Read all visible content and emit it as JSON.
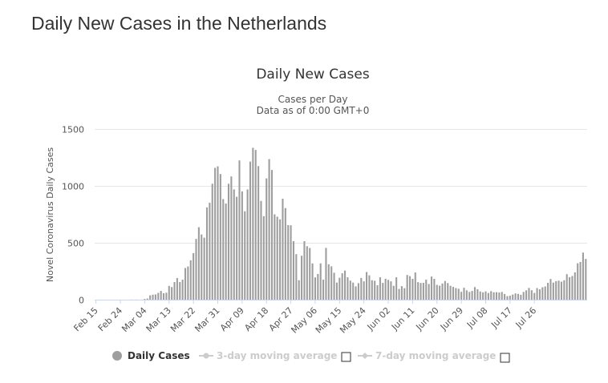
{
  "page": {
    "title": "Daily New Cases in the Netherlands"
  },
  "colors": {
    "bar": "#9e9e9e",
    "grid": "#e6e6e6",
    "axis": "#ccd6eb",
    "legend_active": "#333333",
    "legend_inactive": "#cccccc"
  },
  "legend": {
    "daily": "Daily Cases",
    "ma3": "3-day moving average",
    "ma7": "7-day moving average"
  },
  "chart_data": {
    "type": "bar",
    "title": "Daily New Cases",
    "subtitle_line1": "Cases per Day",
    "subtitle_line2": "Data as of 0:00 GMT+0",
    "ylabel": "Novel Coronavirus Daily Cases",
    "xlabel": "",
    "ylim": [
      0,
      1500
    ],
    "y_ticks": [
      0,
      500,
      1000,
      1500
    ],
    "start_date": "Feb 15",
    "x_tick_labels": [
      "Feb 15",
      "Feb 24",
      "Mar 04",
      "Mar 13",
      "Mar 22",
      "Mar 31",
      "Apr 09",
      "Apr 18",
      "Apr 27",
      "May 06",
      "May 15",
      "May 24",
      "Jun 02",
      "Jun 11",
      "Jun 20",
      "Jun 29",
      "Jul 08",
      "Jul 17",
      "Jul 26"
    ],
    "series": [
      {
        "name": "Daily Cases",
        "values": [
          0,
          0,
          0,
          0,
          0,
          0,
          0,
          0,
          0,
          0,
          0,
          0,
          0,
          1,
          0,
          1,
          0,
          0,
          6,
          10,
          38,
          44,
          46,
          60,
          77,
          56,
          61,
          121,
          111,
          155,
          190,
          155,
          176,
          278,
          292,
          346,
          409,
          534,
          637,
          573,
          545,
          811,
          852,
          1019,
          1159,
          1172,
          1104,
          884,
          845,
          1019,
          1083,
          969,
          904,
          1224,
          952,
          777,
          969,
          1213,
          1335,
          1316,
          1174,
          868,
          734,
          1066,
          1235,
          1140,
          750,
          729,
          706,
          887,
          805,
          655,
          654,
          514,
          400,
          171,
          386,
          514,
          470,
          454,
          319,
          196,
          226,
          319,
          176,
          455,
          311,
          293,
          237,
          150,
          193,
          232,
          256,
          197,
          167,
          150,
          117,
          145,
          191,
          161,
          243,
          214,
          171,
          166,
          127,
          197,
          148,
          184,
          174,
          161,
          122,
          197,
          94,
          119,
          101,
          217,
          207,
          183,
          239,
          154,
          147,
          148,
          176,
          138,
          203,
          183,
          130,
          123,
          142,
          164,
          146,
          122,
          112,
          102,
          96,
          69,
          105,
          82,
          68,
          77,
          111,
          92,
          72,
          65,
          73,
          59,
          75,
          65,
          66,
          63,
          68,
          50,
          31,
          35,
          45,
          55,
          51,
          43,
          68,
          82,
          103,
          83,
          59,
          102,
          91,
          109,
          116,
          148,
          182,
          150,
          163,
          167,
          158,
          171,
          224,
          198,
          208,
          241,
          320,
          331,
          414,
          358
        ]
      }
    ]
  }
}
